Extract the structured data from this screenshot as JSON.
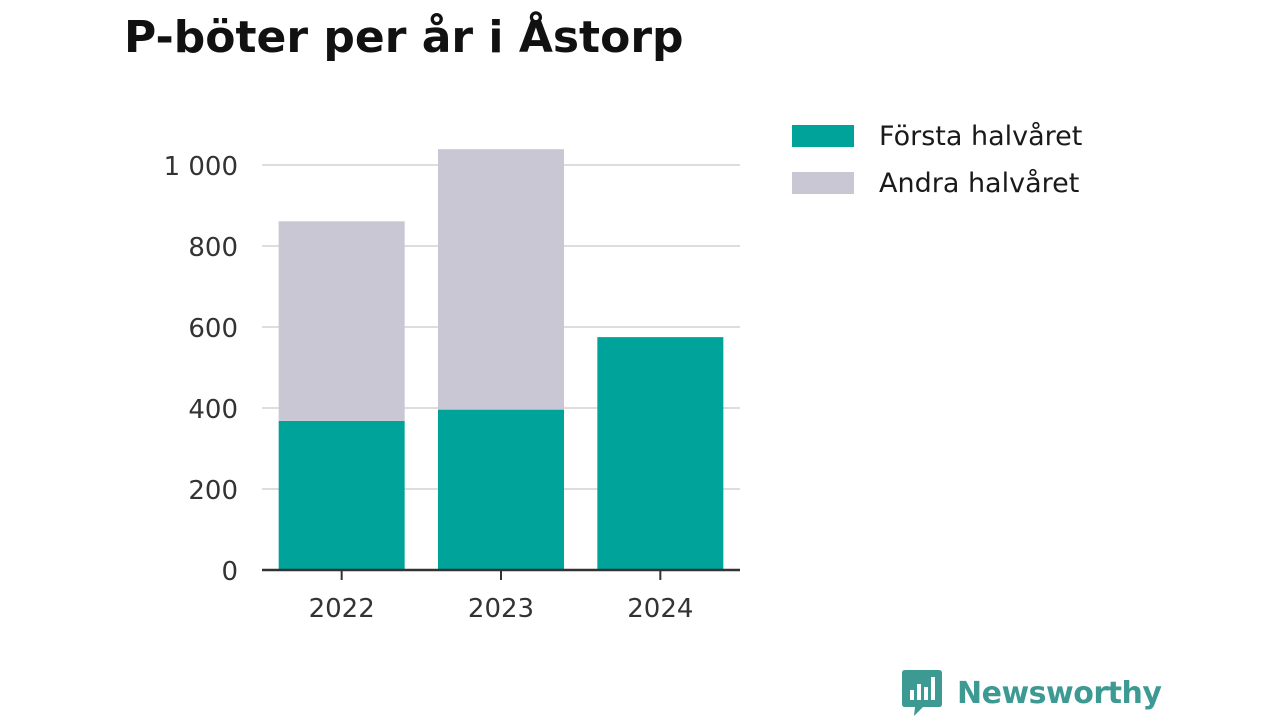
{
  "title": "P-böter per år i Åstorp",
  "colors": {
    "first_half": "#00a39a",
    "second_half": "#c8c7d3",
    "gridline": "#dddddd",
    "axis": "#333333",
    "brand": "#3d9a93"
  },
  "chart_data": {
    "type": "bar",
    "stacked": true,
    "title": "P-böter per år i Åstorp",
    "xlabel": "",
    "ylabel": "",
    "categories": [
      "2022",
      "2023",
      "2024"
    ],
    "series": [
      {
        "name": "Första halvåret",
        "values": [
          368,
          396,
          575
        ]
      },
      {
        "name": "Andra halvåret",
        "values": [
          493,
          643,
          0
        ]
      }
    ],
    "ylim": [
      0,
      1000
    ],
    "yticks": [
      0,
      200,
      400,
      600,
      800,
      1000
    ],
    "ytick_labels": [
      "0",
      "200",
      "400",
      "600",
      "800",
      "1 000"
    ],
    "grid": true,
    "legend_position": "top-right"
  },
  "legend": {
    "items": [
      {
        "label": "Första halvåret",
        "color": "#00a39a"
      },
      {
        "label": "Andra halvåret",
        "color": "#c8c7d3"
      }
    ]
  },
  "brand": {
    "name": "Newsworthy",
    "icon": "bar-chart-speech-bubble-icon"
  }
}
